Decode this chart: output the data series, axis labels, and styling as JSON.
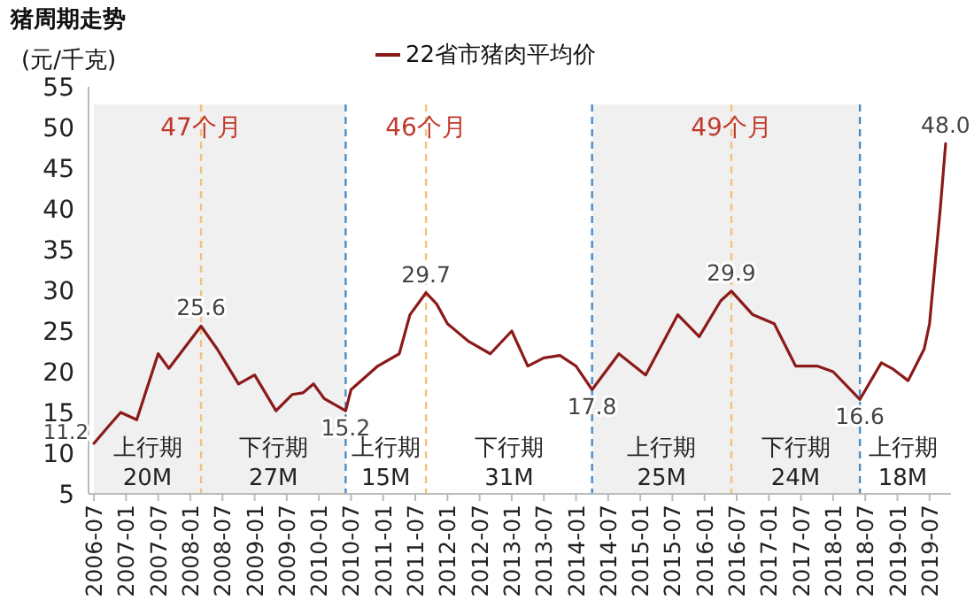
{
  "chart_data": {
    "type": "line",
    "title": "猪周期走势",
    "ylabel": "(元/千克)",
    "legend": "top",
    "marker": "none",
    "grid": false,
    "xlim": [
      "2006-06",
      "2019-11"
    ],
    "ylim": [
      5,
      55
    ],
    "yticks": [
      5,
      10,
      15,
      20,
      25,
      30,
      35,
      40,
      45,
      50,
      55
    ],
    "xticks": [
      "2006-07",
      "2007-01",
      "2007-07",
      "2008-01",
      "2008-07",
      "2009-01",
      "2009-07",
      "2010-01",
      "2010-07",
      "2011-01",
      "2011-07",
      "2012-01",
      "2012-07",
      "2013-01",
      "2013-07",
      "2014-01",
      "2014-07",
      "2015-01",
      "2015-07",
      "2016-01",
      "2016-07",
      "2017-01",
      "2017-07",
      "2018-01",
      "2018-07",
      "2019-01",
      "2019-07"
    ],
    "series": [
      {
        "name": "22省市猪肉平均价",
        "color": "#8b1a1a",
        "line_style": "solid",
        "x": [
          "2006-07",
          "2006-10",
          "2006-12",
          "2007-03",
          "2007-07",
          "2007-09",
          "2008-03",
          "2008-06",
          "2008-10",
          "2009-01",
          "2009-05",
          "2009-08",
          "2009-10",
          "2009-12",
          "2010-02",
          "2010-06",
          "2010-07",
          "2010-12",
          "2011-04",
          "2011-06",
          "2011-09",
          "2011-11",
          "2012-01",
          "2012-05",
          "2012-09",
          "2013-01",
          "2013-04",
          "2013-07",
          "2013-10",
          "2014-01",
          "2014-04",
          "2014-09",
          "2015-02",
          "2015-08",
          "2015-12",
          "2016-04",
          "2016-06",
          "2016-10",
          "2017-02",
          "2017-06",
          "2017-10",
          "2018-01",
          "2018-06",
          "2018-10",
          "2018-12",
          "2019-03",
          "2019-06",
          "2019-07",
          "2019-08",
          "2019-09",
          "2019-10"
        ],
        "values": [
          11.2,
          13.5,
          15.0,
          14.1,
          22.2,
          20.4,
          25.6,
          22.8,
          18.5,
          19.6,
          15.2,
          17.2,
          17.4,
          18.5,
          16.7,
          15.2,
          17.8,
          20.7,
          22.2,
          27.0,
          29.7,
          28.3,
          25.9,
          23.7,
          22.2,
          25.0,
          20.7,
          21.7,
          22.0,
          20.7,
          17.8,
          22.2,
          19.6,
          27.0,
          24.3,
          28.7,
          29.9,
          27.0,
          25.9,
          20.7,
          20.7,
          20.0,
          16.6,
          21.1,
          20.4,
          18.9,
          22.8,
          25.9,
          33.0,
          40.0,
          48.0
        ]
      }
    ],
    "bands": [
      {
        "axis": "x",
        "from": "2006-07",
        "to": "2010-06",
        "color": "#f0f0f0"
      },
      {
        "axis": "x",
        "from": "2014-04",
        "to": "2018-06",
        "color": "#f0f0f0"
      }
    ],
    "ref_lines": [
      {
        "axis": "x",
        "value": "2010-06",
        "color": "#4a8cc8",
        "line_style": "dashed"
      },
      {
        "axis": "x",
        "value": "2014-04",
        "color": "#4a8cc8",
        "line_style": "dashed"
      },
      {
        "axis": "x",
        "value": "2018-06",
        "color": "#4a8cc8",
        "line_style": "dashed"
      },
      {
        "axis": "x",
        "value": "2008-03",
        "color": "#f0c27a",
        "line_style": "dashed",
        "label": "47个月"
      },
      {
        "axis": "x",
        "value": "2011-09",
        "color": "#f0c27a",
        "line_style": "dashed",
        "label": "46个月"
      },
      {
        "axis": "x",
        "value": "2016-06",
        "color": "#f0c27a",
        "line_style": "dashed",
        "label": "49个月"
      }
    ],
    "annotations": [
      {
        "text": "11.2",
        "x": "2006-07",
        "y": 11.2
      },
      {
        "text": "25.6",
        "x": "2008-03",
        "y": 25.6
      },
      {
        "text": "15.2",
        "x": "2010-06",
        "y": 15.2
      },
      {
        "text": "29.7",
        "x": "2011-09",
        "y": 29.7
      },
      {
        "text": "17.8",
        "x": "2014-04",
        "y": 17.8
      },
      {
        "text": "29.9",
        "x": "2016-06",
        "y": 29.9
      },
      {
        "text": "16.6",
        "x": "2018-06",
        "y": 16.6
      },
      {
        "text": "48.0",
        "x": "2019-10",
        "y": 48.0
      },
      "上行期",
      "20M",
      "下行期",
      "27M",
      "上行期",
      "15M",
      "下行期",
      "31M",
      "上行期",
      "25M",
      "下行期",
      "24M",
      "上行期",
      "18M"
    ]
  }
}
